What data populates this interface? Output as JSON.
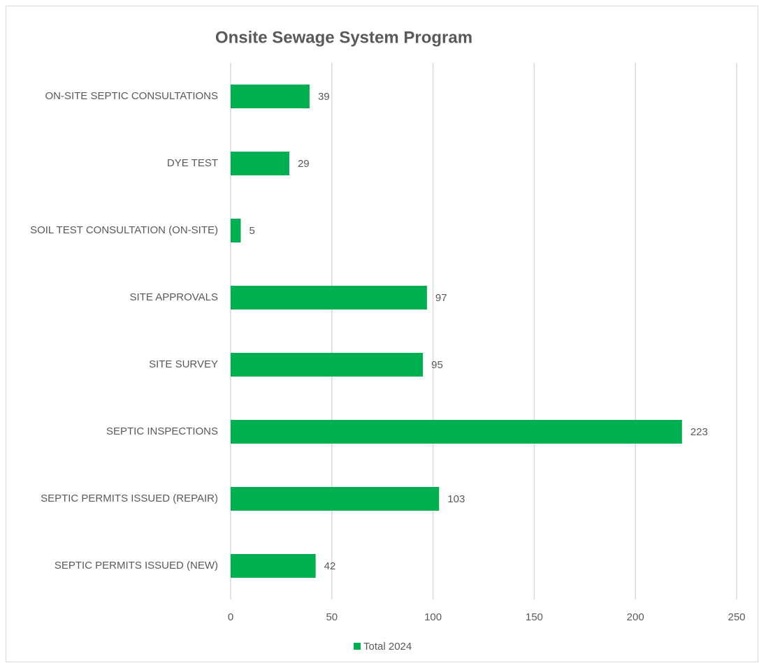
{
  "chart_data": {
    "type": "barh",
    "title": "Onsite Sewage System Program",
    "categories": [
      "ON-SITE SEPTIC CONSULTATIONS",
      "DYE TEST",
      "SOIL TEST CONSULTATION (ON-SITE)",
      "SITE APPROVALS",
      "SITE SURVEY",
      "SEPTIC INSPECTIONS",
      "SEPTIC PERMITS ISSUED (REPAIR)",
      "SEPTIC PERMITS ISSUED (NEW)"
    ],
    "series": [
      {
        "name": "Total 2024",
        "color": "#00b050",
        "values": [
          39,
          29,
          5,
          97,
          95,
          223,
          103,
          42
        ]
      }
    ],
    "xlim": [
      0,
      250
    ],
    "xticks": [
      0,
      50,
      100,
      150,
      200,
      250
    ],
    "grid": true,
    "legend": "bottom"
  }
}
